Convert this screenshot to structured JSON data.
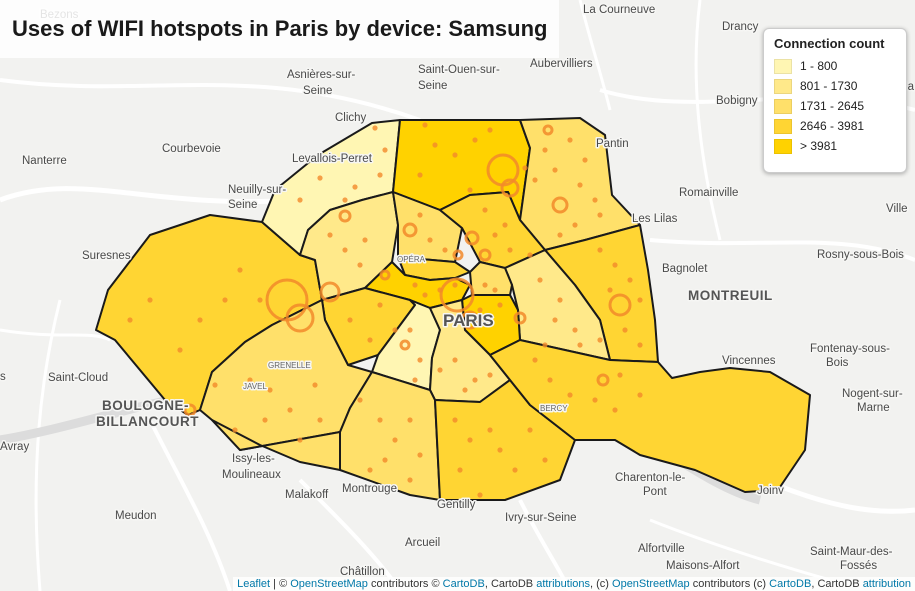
{
  "title": "Uses of WIFI hotspots in Paris by device: Samsung",
  "legend": {
    "title": "Connection count",
    "items": [
      {
        "label": "1 - 800",
        "color": "#fff6b3"
      },
      {
        "label": "801 - 1730",
        "color": "#ffe98a"
      },
      {
        "label": "1731 - 2645",
        "color": "#ffe06a"
      },
      {
        "label": "2646 - 3981",
        "color": "#ffd533"
      },
      {
        "label": "> 3981",
        "color": "#ffd200"
      }
    ]
  },
  "place_labels": [
    {
      "text": "Bezons"
    },
    {
      "text": "La Courneuve"
    },
    {
      "text": "Drancy"
    },
    {
      "text": "Asnières-sur-"
    },
    {
      "text": "Seine"
    },
    {
      "text": "Saint-Ouen-sur-"
    },
    {
      "text": "Seine"
    },
    {
      "text": "Aubervilliers"
    },
    {
      "text": "Bobigny"
    },
    {
      "text": "Clichy"
    },
    {
      "text": "Nanterre"
    },
    {
      "text": "Courbevoie"
    },
    {
      "text": "Levallois-Perret"
    },
    {
      "text": "Pantin"
    },
    {
      "text": "Neuilly-sur-"
    },
    {
      "text": "Seine"
    },
    {
      "text": "Romainville"
    },
    {
      "text": "Les Lilas"
    },
    {
      "text": "Suresnes"
    },
    {
      "text": "Rosny-sous-Bois"
    },
    {
      "text": "Bagnolet"
    },
    {
      "text": "MONTREUIL"
    },
    {
      "text": "OPÉRA"
    },
    {
      "text": "PARIS"
    },
    {
      "text": "Fontenay-sous-"
    },
    {
      "text": "Bois"
    },
    {
      "text": "Vincennes"
    },
    {
      "text": "Saint-Cloud"
    },
    {
      "text": "GRENELLE"
    },
    {
      "text": "JAVEL"
    },
    {
      "text": "BOULOGNE-"
    },
    {
      "text": "BILLANCOURT"
    },
    {
      "text": "Nogent-sur-"
    },
    {
      "text": "Marne"
    },
    {
      "text": "BERCY"
    },
    {
      "text": "Issy-les-"
    },
    {
      "text": "Moulineaux"
    },
    {
      "text": "Charenton-le-"
    },
    {
      "text": "Pont"
    },
    {
      "text": "Joinv"
    },
    {
      "text": "Montrouge"
    },
    {
      "text": "Malakoff"
    },
    {
      "text": "Gentilly"
    },
    {
      "text": "Ivry-sur-Seine"
    },
    {
      "text": "Meudon"
    },
    {
      "text": "Arcueil"
    },
    {
      "text": "Alfortville"
    },
    {
      "text": "Saint-Maur-des-"
    },
    {
      "text": "Fossés"
    },
    {
      "text": "Maisons-Alfort"
    },
    {
      "text": "Châtillon"
    },
    {
      "text": "Avray"
    },
    {
      "text": "Le Pa"
    },
    {
      "text": "Ville"
    },
    {
      "text": "s"
    }
  ],
  "attribution": {
    "leaflet": "Leaflet",
    "sep1": " | © ",
    "osm1": "OpenStreetMap",
    "t1": " contributors © ",
    "cartodb1": "CartoDB",
    "t2": ", CartoDB ",
    "attributions": "attributions",
    "t3": ", (c) ",
    "osm2": "OpenStreetMap",
    "t4": " contributors (c) ",
    "cartodb2": "CartoDB",
    "t5": ", CartoDB ",
    "attributions2": "attribution"
  }
}
